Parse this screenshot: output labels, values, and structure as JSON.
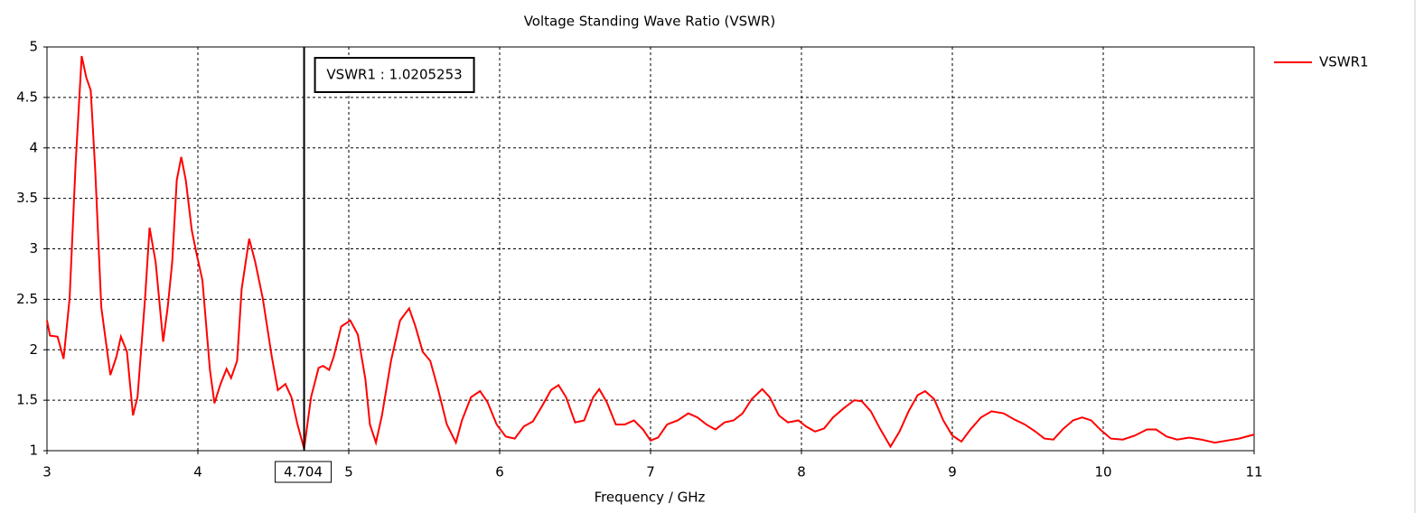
{
  "chart_data": {
    "type": "line",
    "title": "Voltage Standing Wave Ratio (VSWR)",
    "x_label": "Frequency / GHz",
    "x": [
      3.0,
      3.02,
      3.07,
      3.11,
      3.15,
      3.19,
      3.23,
      3.26,
      3.29,
      3.32,
      3.36,
      3.42,
      3.46,
      3.49,
      3.53,
      3.57,
      3.6,
      3.65,
      3.68,
      3.72,
      3.77,
      3.8,
      3.83,
      3.86,
      3.89,
      3.92,
      3.96,
      3.99,
      4.03,
      4.08,
      4.11,
      4.15,
      4.19,
      4.22,
      4.26,
      4.29,
      4.34,
      4.38,
      4.43,
      4.49,
      4.53,
      4.58,
      4.62,
      4.66,
      4.704,
      4.75,
      4.8,
      4.83,
      4.87,
      4.9,
      4.95,
      5.01,
      5.06,
      5.11,
      5.14,
      5.18,
      5.22,
      5.28,
      5.34,
      5.4,
      5.44,
      5.49,
      5.54,
      5.59,
      5.65,
      5.71,
      5.75,
      5.81,
      5.87,
      5.92,
      5.98,
      6.04,
      6.1,
      6.16,
      6.22,
      6.28,
      6.34,
      6.39,
      6.44,
      6.5,
      6.56,
      6.62,
      6.66,
      6.71,
      6.77,
      6.83,
      6.89,
      6.95,
      7.0,
      7.05,
      7.11,
      7.18,
      7.25,
      7.31,
      7.37,
      7.43,
      7.49,
      7.55,
      7.61,
      7.67,
      7.74,
      7.79,
      7.85,
      7.91,
      7.98,
      8.03,
      8.09,
      8.15,
      8.21,
      8.28,
      8.35,
      8.4,
      8.46,
      8.52,
      8.59,
      8.65,
      8.71,
      8.77,
      8.82,
      8.88,
      8.94,
      9.0,
      9.06,
      9.12,
      9.19,
      9.26,
      9.34,
      9.41,
      9.48,
      9.55,
      9.61,
      9.67,
      9.73,
      9.8,
      9.86,
      9.92,
      9.98,
      10.05,
      10.13,
      10.21,
      10.29,
      10.35,
      10.42,
      10.49,
      10.57,
      10.65,
      10.74,
      10.82,
      10.9,
      11.0
    ],
    "series": [
      {
        "name": "VSWR1",
        "color": "#ff0000",
        "values": [
          2.29,
          2.14,
          2.13,
          1.91,
          2.51,
          3.85,
          4.91,
          4.7,
          4.57,
          3.77,
          2.42,
          1.75,
          1.93,
          2.13,
          1.98,
          1.35,
          1.53,
          2.51,
          3.21,
          2.87,
          2.08,
          2.42,
          2.87,
          3.68,
          3.91,
          3.68,
          3.18,
          2.96,
          2.69,
          1.8,
          1.47,
          1.66,
          1.81,
          1.72,
          1.89,
          2.6,
          3.1,
          2.87,
          2.51,
          1.93,
          1.6,
          1.66,
          1.53,
          1.26,
          1.02,
          1.53,
          1.82,
          1.84,
          1.8,
          1.93,
          2.23,
          2.29,
          2.15,
          1.71,
          1.26,
          1.08,
          1.35,
          1.89,
          2.29,
          2.41,
          2.24,
          1.98,
          1.89,
          1.62,
          1.26,
          1.08,
          1.3,
          1.53,
          1.59,
          1.48,
          1.26,
          1.14,
          1.12,
          1.24,
          1.29,
          1.44,
          1.6,
          1.65,
          1.53,
          1.28,
          1.3,
          1.53,
          1.61,
          1.48,
          1.26,
          1.26,
          1.3,
          1.21,
          1.1,
          1.13,
          1.26,
          1.3,
          1.37,
          1.33,
          1.26,
          1.21,
          1.28,
          1.3,
          1.37,
          1.51,
          1.61,
          1.53,
          1.35,
          1.28,
          1.3,
          1.24,
          1.19,
          1.22,
          1.33,
          1.42,
          1.5,
          1.49,
          1.39,
          1.22,
          1.04,
          1.19,
          1.39,
          1.55,
          1.59,
          1.51,
          1.3,
          1.15,
          1.09,
          1.21,
          1.33,
          1.39,
          1.37,
          1.31,
          1.26,
          1.19,
          1.12,
          1.11,
          1.21,
          1.3,
          1.33,
          1.3,
          1.21,
          1.12,
          1.11,
          1.15,
          1.21,
          1.21,
          1.14,
          1.11,
          1.13,
          1.11,
          1.08,
          1.1,
          1.12,
          1.16
        ]
      }
    ],
    "xlim": [
      3,
      11
    ],
    "xticks": [
      3,
      4,
      5,
      6,
      7,
      8,
      9,
      10,
      11
    ],
    "ylim": [
      1,
      5
    ],
    "yticks": [
      1,
      1.5,
      2,
      2.5,
      3,
      3.5,
      4,
      4.5,
      5
    ],
    "grid": true,
    "legend": "right",
    "marker": {
      "x": 4.704,
      "annotation": "VSWR1 : 1.0205253"
    }
  }
}
